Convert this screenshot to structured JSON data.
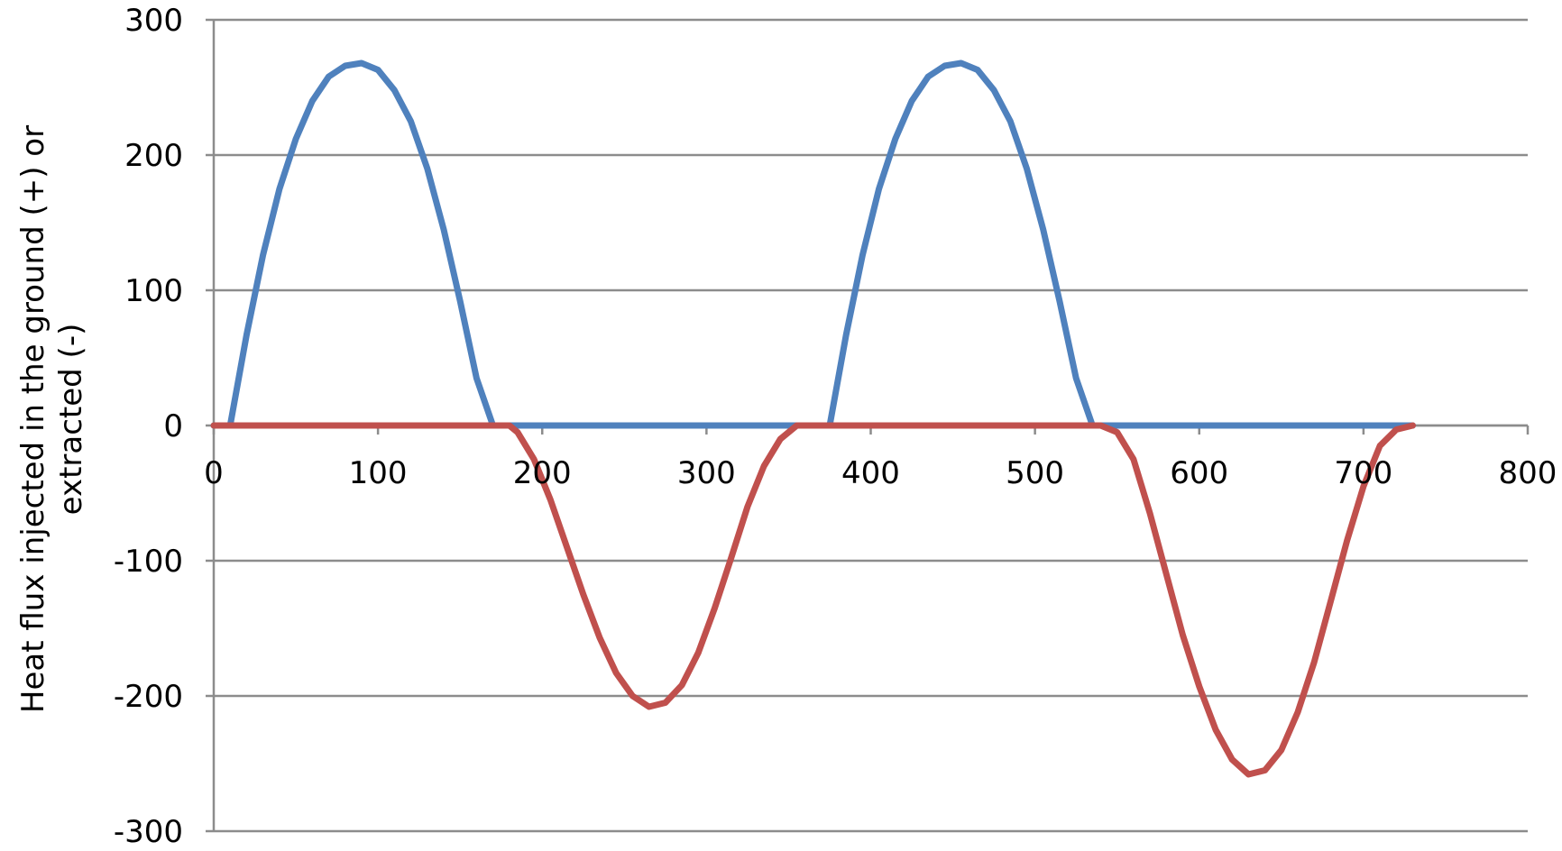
{
  "chart_data": {
    "type": "line",
    "title": "",
    "xlabel": "",
    "ylabel_lines": [
      "Heat flux injected in the ground (+) or",
      "extracted (-)"
    ],
    "xlim": [
      0,
      800
    ],
    "ylim": [
      -300,
      300
    ],
    "x_ticks": [
      "0",
      "100",
      "200",
      "300",
      "400",
      "500",
      "600",
      "700",
      "800"
    ],
    "x_tick_values": [
      0,
      100,
      200,
      300,
      400,
      500,
      600,
      700,
      800
    ],
    "y_ticks": [
      "300",
      "200",
      "100",
      "0",
      "-100",
      "-200",
      "-300"
    ],
    "y_tick_values": [
      300,
      200,
      100,
      0,
      -100,
      -200,
      -300
    ],
    "grid": "horizontal",
    "legend": "none",
    "series": [
      {
        "color": "#4f81bd",
        "x": [
          0,
          10,
          20,
          30,
          40,
          50,
          60,
          70,
          80,
          90,
          100,
          110,
          120,
          130,
          140,
          150,
          160,
          170,
          180,
          190,
          200,
          250,
          300,
          350,
          365,
          375,
          385,
          395,
          405,
          415,
          425,
          435,
          445,
          455,
          465,
          475,
          485,
          495,
          505,
          515,
          525,
          535,
          545,
          555,
          600,
          650,
          700,
          730
        ],
        "y": [
          0,
          0,
          67,
          126,
          175,
          212,
          240,
          258,
          266,
          268,
          263,
          248,
          225,
          190,
          145,
          92,
          35,
          0,
          0,
          0,
          0,
          0,
          0,
          0,
          0,
          0,
          67,
          126,
          175,
          212,
          240,
          258,
          266,
          268,
          263,
          248,
          225,
          190,
          145,
          92,
          35,
          0,
          0,
          0,
          0,
          0,
          0,
          0
        ]
      },
      {
        "color": "#c0504d",
        "x": [
          0,
          50,
          100,
          150,
          170,
          180,
          185,
          195,
          205,
          215,
          225,
          235,
          245,
          255,
          265,
          275,
          285,
          295,
          305,
          315,
          325,
          335,
          345,
          355,
          365,
          375,
          400,
          450,
          500,
          540,
          550,
          560,
          570,
          580,
          590,
          600,
          610,
          620,
          630,
          640,
          650,
          660,
          670,
          680,
          690,
          700,
          710,
          720,
          730
        ],
        "y": [
          0,
          0,
          0,
          0,
          0,
          0,
          -5,
          -25,
          -55,
          -90,
          -125,
          -157,
          -183,
          -200,
          -208,
          -205,
          -192,
          -168,
          -135,
          -98,
          -60,
          -30,
          -10,
          0,
          0,
          0,
          0,
          0,
          0,
          0,
          -5,
          -25,
          -65,
          -110,
          -155,
          -193,
          -225,
          -247,
          -258,
          -255,
          -240,
          -212,
          -175,
          -130,
          -85,
          -45,
          -15,
          -3,
          0
        ]
      }
    ]
  }
}
